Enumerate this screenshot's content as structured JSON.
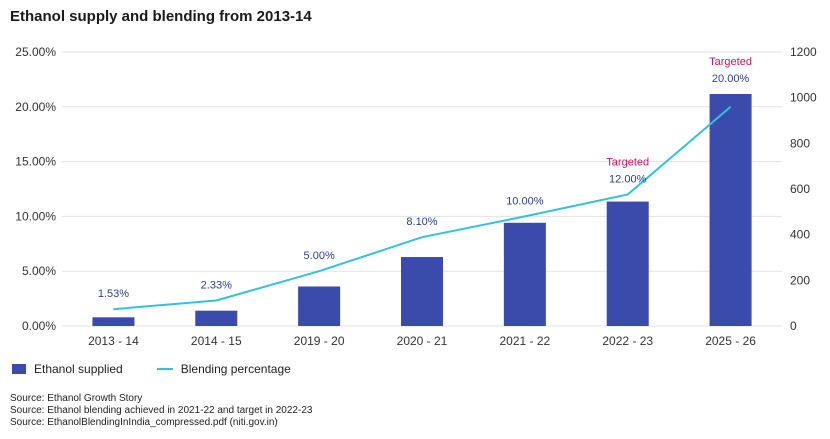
{
  "title": "Ethanol supply and blending from 2013-14",
  "colors": {
    "bar": "#3a4bab",
    "line": "#2ec4dd",
    "label": "#2c3e91",
    "target": "#d1135f",
    "grid": "#e3e3e3"
  },
  "chart_data": {
    "type": "bar",
    "categories": [
      "2013 - 14",
      "2014 - 15",
      "2019 - 20",
      "2020 - 21",
      "2021 - 22",
      "2022 - 23",
      "2025 - 26"
    ],
    "left_ticks": [
      "0.00%",
      "5.00%",
      "10.00%",
      "15.00%",
      "20.00%",
      "25.00%"
    ],
    "right_ticks": [
      "0",
      "200",
      "400",
      "600",
      "800",
      "1000",
      "1200"
    ],
    "left_ylim": [
      0,
      25
    ],
    "right_ylim": [
      0,
      1200
    ],
    "series": [
      {
        "name": "Ethanol supplied",
        "type": "bar",
        "axis": "right",
        "values": [
          38,
          67,
          173,
          302,
          452,
          545,
          1016
        ]
      },
      {
        "name": "Blending percentage",
        "type": "line",
        "axis": "left",
        "values": [
          1.53,
          2.33,
          5.0,
          8.1,
          10.0,
          12.0,
          20.0
        ],
        "labels": [
          "1.53%",
          "2.33%",
          "5.00%",
          "8.10%",
          "10.00%",
          "12.00%",
          "20.00%"
        ]
      }
    ],
    "annotations": [
      {
        "category_index": 5,
        "text": "Targeted"
      },
      {
        "category_index": 6,
        "text": "Targeted"
      }
    ],
    "grid": true,
    "legend": "bottom-left"
  },
  "sources": [
    "Source: Ethanol Growth Story",
    "Source: Ethanol blending achieved in 2021-22 and target in 2022-23",
    "Source: EthanolBlendingInIndia_compressed.pdf (niti.gov.in)"
  ]
}
